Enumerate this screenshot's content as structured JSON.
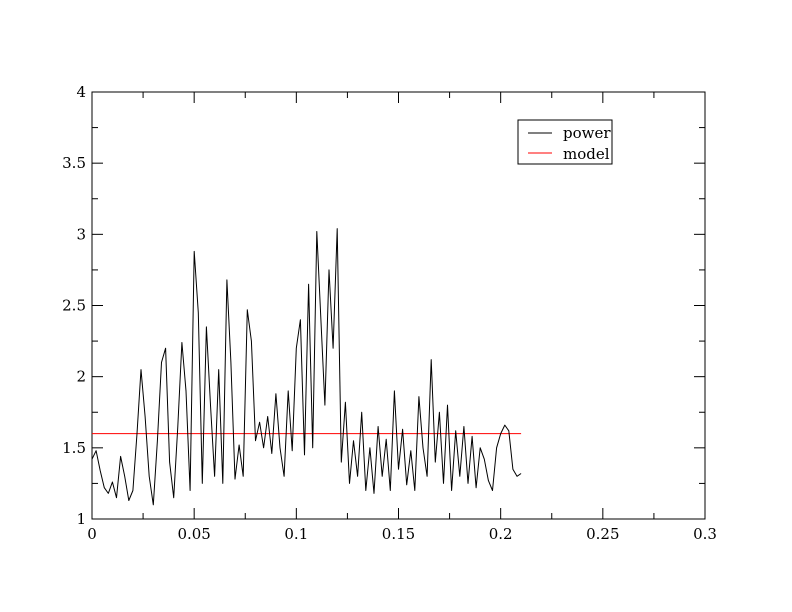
{
  "chart_data": {
    "type": "line",
    "title": "",
    "xlabel": "",
    "ylabel": "",
    "xlim": [
      0,
      0.3
    ],
    "ylim": [
      1,
      4
    ],
    "x_ticks": [
      0,
      0.05,
      0.1,
      0.15,
      0.2,
      0.25,
      0.3
    ],
    "x_tick_labels": [
      "0",
      "0.05",
      "0.1",
      "0.15",
      "0.2",
      "0.25",
      "0.3"
    ],
    "y_ticks": [
      1,
      1.5,
      2,
      2.5,
      3,
      3.5,
      4
    ],
    "y_tick_labels": [
      "1",
      "1.5",
      "2",
      "2.5",
      "3",
      "3.5",
      "4"
    ],
    "grid": false,
    "legend": {
      "placement": "top-right",
      "entries": [
        "power",
        "model"
      ]
    },
    "series": [
      {
        "name": "power",
        "color": "#000000",
        "x": [
          0,
          0.002,
          0.004,
          0.006,
          0.008,
          0.01,
          0.012,
          0.014,
          0.016,
          0.018,
          0.02,
          0.022,
          0.024,
          0.026,
          0.028,
          0.03,
          0.032,
          0.034,
          0.036,
          0.038,
          0.04,
          0.042,
          0.044,
          0.046,
          0.048,
          0.05,
          0.052,
          0.054,
          0.056,
          0.058,
          0.06,
          0.062,
          0.064,
          0.066,
          0.068,
          0.07,
          0.072,
          0.074,
          0.076,
          0.078,
          0.08,
          0.082,
          0.084,
          0.086,
          0.088,
          0.09,
          0.092,
          0.094,
          0.096,
          0.098,
          0.1,
          0.102,
          0.104,
          0.106,
          0.108,
          0.11,
          0.112,
          0.114,
          0.116,
          0.118,
          0.12,
          0.122,
          0.124,
          0.126,
          0.128,
          0.13,
          0.132,
          0.134,
          0.136,
          0.138,
          0.14,
          0.142,
          0.144,
          0.146,
          0.148,
          0.15,
          0.152,
          0.154,
          0.156,
          0.158,
          0.16,
          0.162,
          0.164,
          0.166,
          0.168,
          0.17,
          0.172,
          0.174,
          0.176,
          0.178,
          0.18,
          0.182,
          0.184,
          0.186,
          0.188,
          0.19,
          0.192,
          0.194,
          0.196,
          0.198,
          0.2,
          0.202,
          0.204,
          0.206,
          0.208,
          0.21
        ],
        "y": [
          1.42,
          1.48,
          1.34,
          1.22,
          1.18,
          1.26,
          1.15,
          1.44,
          1.3,
          1.13,
          1.2,
          1.6,
          2.05,
          1.72,
          1.3,
          1.1,
          1.55,
          2.1,
          2.2,
          1.4,
          1.15,
          1.65,
          2.24,
          1.9,
          1.2,
          2.88,
          2.45,
          1.25,
          2.35,
          1.8,
          1.3,
          2.05,
          1.25,
          2.68,
          2.1,
          1.28,
          1.52,
          1.3,
          2.47,
          2.25,
          1.55,
          1.68,
          1.5,
          1.72,
          1.46,
          1.88,
          1.5,
          1.3,
          1.9,
          1.48,
          2.2,
          2.4,
          1.45,
          2.65,
          1.5,
          3.02,
          2.4,
          1.8,
          2.75,
          2.2,
          3.04,
          1.4,
          1.82,
          1.25,
          1.55,
          1.3,
          1.75,
          1.2,
          1.5,
          1.18,
          1.65,
          1.3,
          1.56,
          1.2,
          1.9,
          1.35,
          1.63,
          1.24,
          1.48,
          1.2,
          1.86,
          1.5,
          1.3,
          2.12,
          1.4,
          1.75,
          1.25,
          1.8,
          1.2,
          1.62,
          1.3,
          1.65,
          1.25,
          1.58,
          1.22,
          1.5,
          1.42,
          1.27,
          1.2,
          1.5,
          1.6,
          1.66,
          1.62,
          1.35,
          1.3,
          1.32
        ]
      },
      {
        "name": "model",
        "color": "#ff0000",
        "x": [
          0,
          0.21
        ],
        "y": [
          1.6,
          1.6
        ]
      }
    ]
  }
}
